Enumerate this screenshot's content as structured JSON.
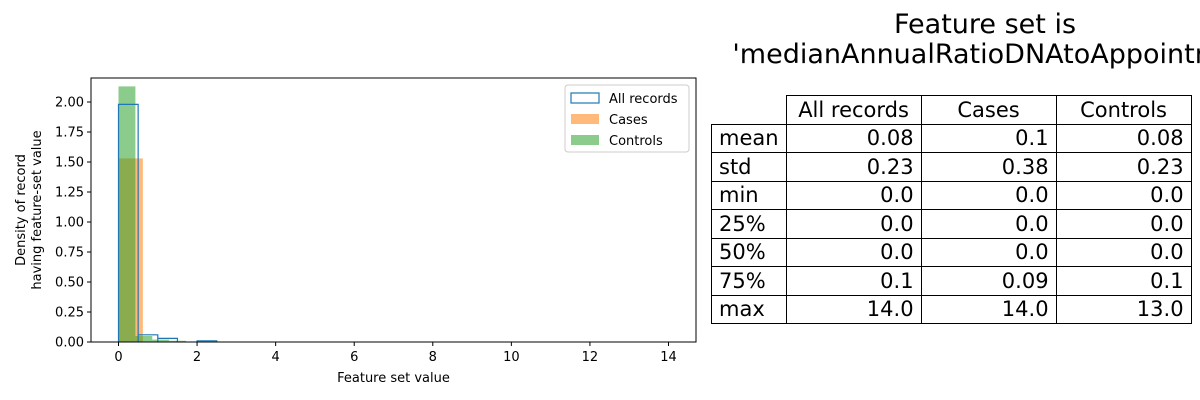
{
  "title_lines": [
    "Feature set is",
    "'medianAnnualRatioDNAtoAppointme"
  ],
  "chart_data": {
    "type": "histogram",
    "xlabel": "Feature set value",
    "ylabel": [
      "Density of record",
      "having feature-set value"
    ],
    "xlim": [
      -0.7,
      14.7
    ],
    "ylim": [
      0,
      2.2
    ],
    "xticks": [
      "0",
      "2",
      "4",
      "6",
      "8",
      "10",
      "12",
      "14"
    ],
    "yticks": [
      "0.00",
      "0.25",
      "0.50",
      "0.75",
      "1.00",
      "1.25",
      "1.50",
      "1.75",
      "2.00"
    ],
    "legend_position": "top-right",
    "series": [
      {
        "name": "All records",
        "style": "step",
        "color": "#1f77b4",
        "bin_width": 0.5,
        "bins": [
          [
            0.0,
            1.98
          ],
          [
            0.5,
            0.06
          ],
          [
            1.0,
            0.03
          ],
          [
            2.0,
            0.01
          ]
        ]
      },
      {
        "name": "Cases",
        "style": "filled",
        "color": "#ff7f0e",
        "bin_width": 0.62,
        "bins": [
          [
            0.0,
            1.53
          ]
        ]
      },
      {
        "name": "Controls",
        "style": "filled",
        "color": "#2ca02c",
        "bin_width": 0.43,
        "bins": [
          [
            0.0,
            2.13
          ],
          [
            0.43,
            0.05
          ],
          [
            0.86,
            0.02
          ],
          [
            1.29,
            0.01
          ]
        ]
      }
    ]
  },
  "table": {
    "columns": [
      "All records",
      "Cases",
      "Controls"
    ],
    "rows": [
      {
        "label": "mean",
        "values": [
          "0.08",
          "0.1",
          "0.08"
        ]
      },
      {
        "label": "std",
        "values": [
          "0.23",
          "0.38",
          "0.23"
        ]
      },
      {
        "label": "min",
        "values": [
          "0.0",
          "0.0",
          "0.0"
        ]
      },
      {
        "label": "25%",
        "values": [
          "0.0",
          "0.0",
          "0.0"
        ]
      },
      {
        "label": "50%",
        "values": [
          "0.0",
          "0.0",
          "0.0"
        ]
      },
      {
        "label": "75%",
        "values": [
          "0.1",
          "0.09",
          "0.1"
        ]
      },
      {
        "label": "max",
        "values": [
          "14.0",
          "14.0",
          "13.0"
        ]
      }
    ]
  }
}
